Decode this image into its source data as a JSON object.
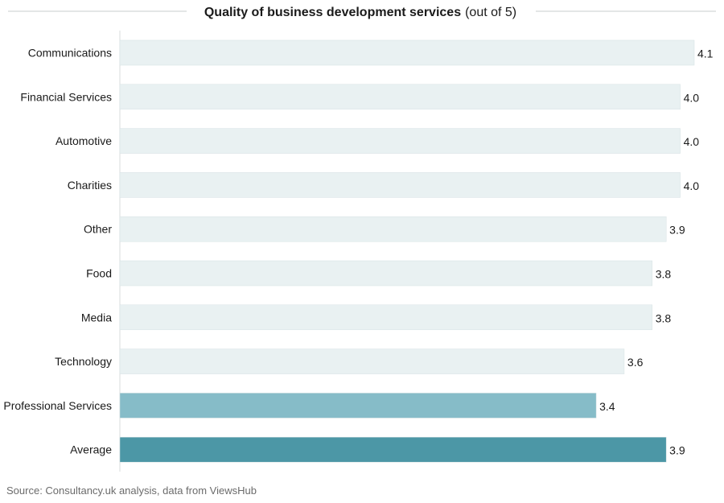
{
  "chart_data": {
    "type": "bar",
    "orientation": "horizontal",
    "title": "Quality of business development services",
    "title_suffix": "(out of 5)",
    "categories": [
      "Communications",
      "Financial Services",
      "Automotive",
      "Charities",
      "Other",
      "Food",
      "Media",
      "Technology",
      "Professional Services",
      "Average"
    ],
    "values": [
      4.1,
      4.0,
      4.0,
      4.0,
      3.9,
      3.8,
      3.8,
      3.6,
      3.4,
      3.9
    ],
    "value_labels": [
      "4.1",
      "4.0",
      "4.0",
      "4.0",
      "3.9",
      "3.8",
      "3.8",
      "3.6",
      "3.4",
      "3.9"
    ],
    "bar_colors": [
      "#e9f1f2",
      "#e9f1f2",
      "#e9f1f2",
      "#e9f1f2",
      "#e9f1f2",
      "#e9f1f2",
      "#e9f1f2",
      "#e9f1f2",
      "#86bcc8",
      "#4c97a6"
    ],
    "xlabel": "",
    "ylabel": "",
    "xlim": [
      0,
      4.1
    ],
    "grid": false
  },
  "source": "Source: Consultancy.uk analysis, data from ViewsHub"
}
